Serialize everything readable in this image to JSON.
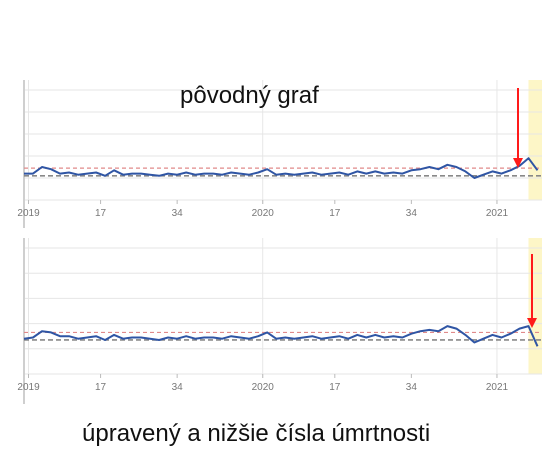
{
  "captions": {
    "top": "pôvodný graf",
    "bottom": "úpravený a nižšie čísla úmrtnosti"
  },
  "colors": {
    "line": "#2f55a4",
    "upper_threshold": "#e08a8a",
    "baseline": "#888888",
    "highlight": "#fdf6c7",
    "arrow": "#ff1a1a",
    "grid": "#e6e6e6"
  },
  "chart_data": [
    {
      "type": "line",
      "title": "",
      "xlabel": "",
      "ylabel": "",
      "tick_labels": [
        "2019",
        "17",
        "34",
        "2020",
        "17",
        "34",
        "2021"
      ],
      "tick_weeks": [
        1,
        17,
        34,
        53,
        69,
        86,
        105
      ],
      "xlim": [
        0,
        115
      ],
      "ylim": [
        0,
        100
      ],
      "highlight_range": [
        112,
        115
      ],
      "baseline": 22,
      "upper_threshold": 29,
      "grid": true,
      "annotation": "red-arrow",
      "series": [
        {
          "x": [
            0,
            2,
            4,
            6,
            8,
            10,
            12,
            14,
            16,
            18,
            20,
            22,
            24,
            26,
            28,
            30,
            32,
            34,
            36,
            38,
            40,
            42,
            44,
            46,
            48,
            50,
            52,
            54,
            56,
            58,
            60,
            62,
            64,
            66,
            68,
            70,
            72,
            74,
            76,
            78,
            80,
            82,
            84,
            86,
            88,
            90,
            92,
            94,
            96,
            98,
            100,
            102,
            104,
            106,
            108,
            110,
            112,
            114
          ],
          "values": [
            24,
            24,
            30,
            28,
            24,
            25,
            23,
            24,
            25,
            22,
            27,
            23,
            24,
            24,
            23,
            22,
            24,
            23,
            25,
            23,
            24,
            24,
            23,
            25,
            24,
            23,
            25,
            28,
            23,
            24,
            23,
            24,
            25,
            23,
            24,
            25,
            23,
            26,
            24,
            26,
            24,
            25,
            24,
            27,
            28,
            30,
            28,
            32,
            30,
            26,
            20,
            23,
            26,
            24,
            27,
            31,
            38,
            27
          ]
        }
      ]
    },
    {
      "type": "line",
      "title": "",
      "xlabel": "",
      "ylabel": "",
      "tick_labels": [
        "2019",
        "17",
        "34",
        "2020",
        "17",
        "34",
        "2021"
      ],
      "tick_weeks": [
        1,
        17,
        34,
        53,
        69,
        86,
        105
      ],
      "xlim": [
        0,
        115
      ],
      "ylim": [
        0,
        100
      ],
      "highlight_range": [
        112,
        115
      ],
      "baseline": 27,
      "upper_threshold": 33,
      "grid": true,
      "annotation": "red-arrow",
      "series": [
        {
          "x": [
            0,
            2,
            4,
            6,
            8,
            10,
            12,
            14,
            16,
            18,
            20,
            22,
            24,
            26,
            28,
            30,
            32,
            34,
            36,
            38,
            40,
            42,
            44,
            46,
            48,
            50,
            52,
            54,
            56,
            58,
            60,
            62,
            64,
            66,
            68,
            70,
            72,
            74,
            76,
            78,
            80,
            82,
            84,
            86,
            88,
            90,
            92,
            94,
            96,
            98,
            100,
            102,
            104,
            106,
            108,
            110,
            112,
            114
          ],
          "values": [
            28,
            29,
            34,
            33,
            30,
            30,
            28,
            29,
            30,
            27,
            31,
            28,
            29,
            29,
            28,
            27,
            29,
            28,
            30,
            28,
            29,
            29,
            28,
            30,
            29,
            28,
            30,
            33,
            28,
            29,
            28,
            29,
            30,
            28,
            29,
            30,
            28,
            31,
            29,
            31,
            29,
            30,
            29,
            32,
            34,
            35,
            34,
            38,
            36,
            31,
            25,
            28,
            31,
            29,
            32,
            36,
            38,
            22
          ]
        }
      ]
    }
  ]
}
